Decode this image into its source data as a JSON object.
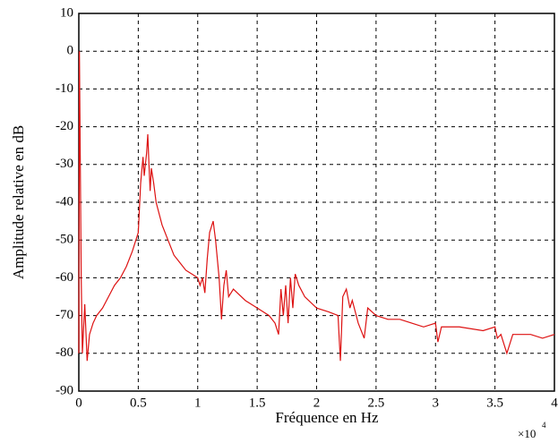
{
  "chart_data": {
    "type": "line",
    "x_label": "Fréquence en Hz",
    "y_label": "Amplitude relative en dB",
    "x_multiplier": {
      "base": "×10",
      "exponent": "4"
    },
    "color": "#dd1111",
    "grid": true,
    "xlim": [
      0,
      4
    ],
    "ylim": [
      -90,
      10
    ],
    "xticks": [
      0,
      0.5,
      1,
      1.5,
      2,
      2.5,
      3,
      3.5,
      4
    ],
    "yticks": [
      -90,
      -80,
      -70,
      -60,
      -50,
      -40,
      -30,
      -20,
      -10,
      0,
      10
    ],
    "x": [
      0,
      0.005,
      0.01,
      0.02,
      0.03,
      0.05,
      0.07,
      0.09,
      0.12,
      0.15,
      0.2,
      0.25,
      0.3,
      0.35,
      0.4,
      0.45,
      0.5,
      0.52,
      0.54,
      0.55,
      0.57,
      0.58,
      0.59,
      0.6,
      0.61,
      0.63,
      0.65,
      0.7,
      0.75,
      0.8,
      0.85,
      0.9,
      0.95,
      1.0,
      1.02,
      1.04,
      1.06,
      1.08,
      1.1,
      1.13,
      1.15,
      1.18,
      1.2,
      1.22,
      1.24,
      1.26,
      1.3,
      1.4,
      1.5,
      1.6,
      1.65,
      1.68,
      1.7,
      1.72,
      1.74,
      1.76,
      1.78,
      1.8,
      1.82,
      1.85,
      1.9,
      2.0,
      2.1,
      2.18,
      2.2,
      2.22,
      2.25,
      2.28,
      2.3,
      2.35,
      2.4,
      2.43,
      2.5,
      2.6,
      2.7,
      2.8,
      2.9,
      3.0,
      3.02,
      3.05,
      3.2,
      3.4,
      3.5,
      3.52,
      3.55,
      3.6,
      3.65,
      3.8,
      3.9,
      4.0
    ],
    "values": [
      -80,
      0,
      -20,
      -60,
      -80,
      -67,
      -82,
      -75,
      -72,
      -70,
      -68,
      -65,
      -62,
      -60,
      -57,
      -53,
      -48,
      -35,
      -28,
      -33,
      -27,
      -22,
      -30,
      -37,
      -31,
      -35,
      -40,
      -46,
      -50,
      -54,
      -56,
      -58,
      -59,
      -60,
      -62,
      -60,
      -64,
      -55,
      -48,
      -45,
      -50,
      -60,
      -71,
      -62,
      -58,
      -65,
      -63,
      -66,
      -68,
      -70,
      -72,
      -75,
      -63,
      -70,
      -62,
      -72,
      -60,
      -68,
      -59,
      -62,
      -65,
      -68,
      -69,
      -70,
      -82,
      -65,
      -63,
      -68,
      -66,
      -72,
      -76,
      -68,
      -70,
      -71,
      -71,
      -72,
      -73,
      -72,
      -77,
      -73,
      -73,
      -74,
      -73,
      -76,
      -75,
      -80,
      -75,
      -75,
      -76,
      -75
    ]
  }
}
